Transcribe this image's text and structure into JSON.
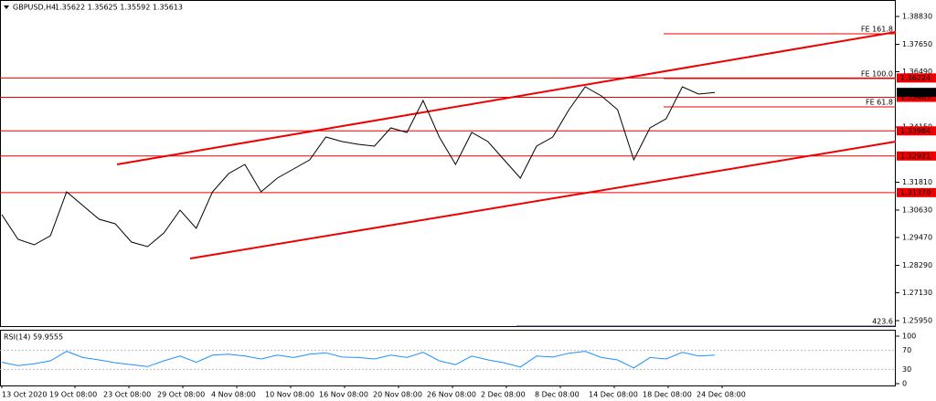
{
  "header": {
    "title": "GBPUSD,H4",
    "quote": "1.35622 1.35625 1.35592 1.35613"
  },
  "price_axis": {
    "range": [
      1.39526,
      1.25679
    ],
    "ticks": [
      {
        "value": 1.3883,
        "label": "1.38830"
      },
      {
        "value": 1.3765,
        "label": "1.37650"
      },
      {
        "value": 1.3649,
        "label": "1.36490"
      },
      {
        "value": 1.3415,
        "label": "1.34150"
      },
      {
        "value": 1.3181,
        "label": "1.31810"
      },
      {
        "value": 1.3063,
        "label": "1.30630"
      },
      {
        "value": 1.2947,
        "label": "1.29470"
      },
      {
        "value": 1.2829,
        "label": "1.28290"
      },
      {
        "value": 1.2713,
        "label": "1.27130"
      },
      {
        "value": 1.2595,
        "label": "1.25950"
      }
    ]
  },
  "levels": [
    "1.36224",
    "1.35405",
    "1.33984",
    "1.32921",
    "1.31370"
  ],
  "current_price": "1.35613",
  "fibo": [
    {
      "label": "FE 161.8",
      "price": 1.38095
    },
    {
      "label": "FE 100.0",
      "price": 1.362
    },
    {
      "label": "FE 61.8",
      "price": 1.35001
    },
    {
      "label": "423.6",
      "price": 1.25679
    }
  ],
  "closes": [
    1.30437,
    1.29393,
    1.29161,
    1.29548,
    1.31404,
    1.30824,
    1.30243,
    1.3005,
    1.29277,
    1.29083,
    1.29664,
    1.3063,
    1.29857,
    1.31404,
    1.32177,
    1.32564,
    1.31404,
    1.31984,
    1.32371,
    1.32758,
    1.33725,
    1.33531,
    1.33415,
    1.33338,
    1.34112,
    1.33918,
    1.35272,
    1.33725,
    1.32564,
    1.33918,
    1.33531,
    1.32758,
    1.31984,
    1.33338,
    1.33725,
    1.34885,
    1.35852,
    1.35465,
    1.34885,
    1.32758,
    1.34112,
    1.34498,
    1.35852,
    1.35542,
    1.35613
  ],
  "rsi": {
    "title": "RSI(14) 59.9555",
    "ticks": [
      100,
      70,
      30,
      0
    ],
    "values": [
      45,
      38,
      42,
      48,
      68,
      55,
      50,
      44,
      40,
      36,
      48,
      58,
      45,
      60,
      62,
      58,
      52,
      60,
      55,
      62,
      65,
      56,
      55,
      52,
      60,
      55,
      66,
      48,
      40,
      58,
      50,
      44,
      35,
      58,
      56,
      64,
      68,
      55,
      50,
      33,
      55,
      52,
      66,
      58,
      60
    ]
  },
  "time_axis": [
    "13 Oct 2020",
    "19 Oct 08:00",
    "23 Oct 08:00",
    "29 Oct 08:00",
    "4 Nov 08:00",
    "10 Nov 08:00",
    "16 Nov 08:00",
    "20 Nov 08:00",
    "26 Nov 08:00",
    "2 Dec 08:00",
    "8 Dec 08:00",
    "14 Dec 08:00",
    "18 Dec 08:00",
    "24 Dec 08:00"
  ]
}
